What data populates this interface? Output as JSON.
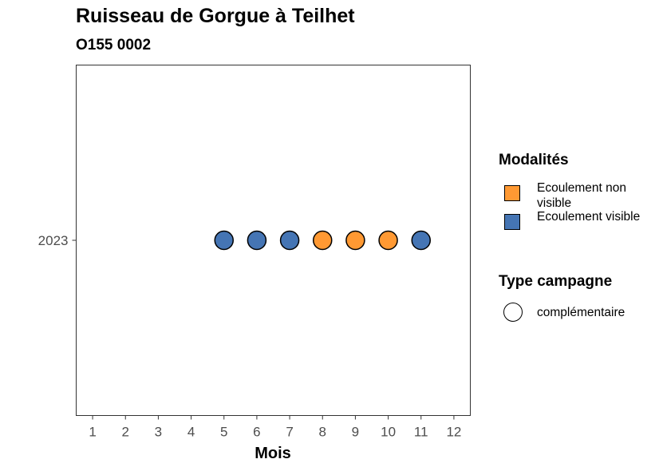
{
  "chart_data": {
    "type": "scatter",
    "title": "Ruisseau de Gorgue à Teilhet",
    "subtitle": "O155 0002",
    "xlabel": "Mois",
    "ylabel": "",
    "x_ticks": [
      "1",
      "2",
      "3",
      "4",
      "5",
      "6",
      "7",
      "8",
      "9",
      "10",
      "11",
      "12"
    ],
    "xlim": [
      0.5,
      12.5
    ],
    "y_categories": [
      "2023"
    ],
    "grid": false,
    "legend_position": "right",
    "points": [
      {
        "x": 5,
        "y": "2023",
        "modalite": "Ecoulement visible",
        "campagne": "complémentaire"
      },
      {
        "x": 6,
        "y": "2023",
        "modalite": "Ecoulement visible",
        "campagne": "complémentaire"
      },
      {
        "x": 7,
        "y": "2023",
        "modalite": "Ecoulement visible",
        "campagne": "complémentaire"
      },
      {
        "x": 8,
        "y": "2023",
        "modalite": "Ecoulement non visible",
        "campagne": "complémentaire"
      },
      {
        "x": 9,
        "y": "2023",
        "modalite": "Ecoulement non visible",
        "campagne": "complémentaire"
      },
      {
        "x": 10,
        "y": "2023",
        "modalite": "Ecoulement non visible",
        "campagne": "complémentaire"
      },
      {
        "x": 11,
        "y": "2023",
        "modalite": "Ecoulement visible",
        "campagne": "complémentaire"
      }
    ],
    "legend": {
      "modalites_title": "Modalités",
      "modalites": [
        {
          "label": "Ecoulement non visible",
          "color": "#FF9933"
        },
        {
          "label": "Ecoulement visible",
          "color": "#4575B4"
        }
      ],
      "campagne_title": "Type campagne",
      "campagnes": [
        {
          "label": "complémentaire",
          "shape": "circle"
        }
      ]
    }
  }
}
